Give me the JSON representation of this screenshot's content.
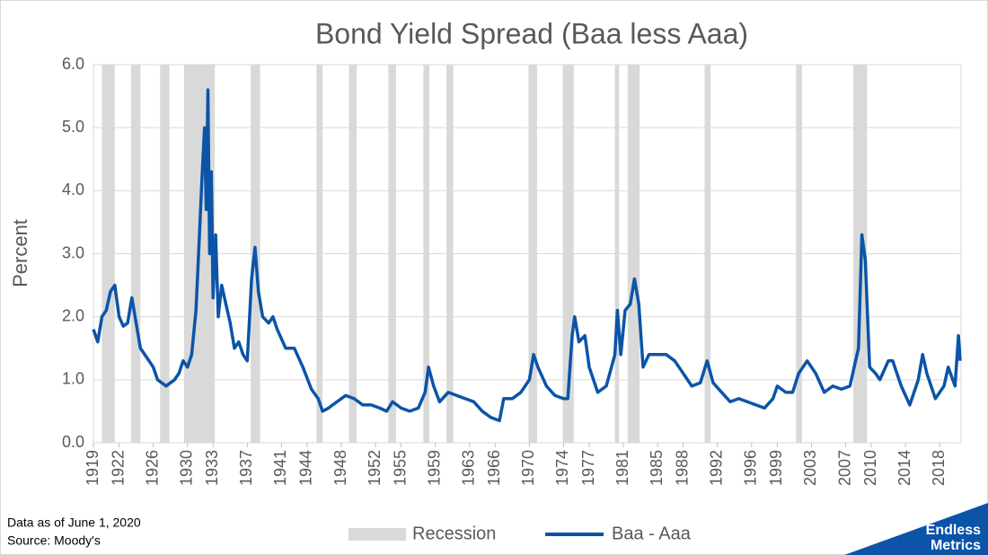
{
  "chart_data": {
    "type": "line",
    "title": "Bond Yield Spread (Baa less Aaa)",
    "y_label": "Percent",
    "xlim": [
      1919,
      2020.5
    ],
    "xticks": [
      1919,
      1922,
      1926,
      1930,
      1933,
      1937,
      1941,
      1944,
      1948,
      1952,
      1955,
      1959,
      1963,
      1966,
      1970,
      1974,
      1977,
      1981,
      1985,
      1988,
      1992,
      1996,
      1999,
      2003,
      2007,
      2010,
      2014,
      2018
    ],
    "ylim": [
      0,
      6
    ],
    "yticks": [
      {
        "value": 0,
        "label": "0.0"
      },
      {
        "value": 1,
        "label": "1.0"
      },
      {
        "value": 2,
        "label": "2.0"
      },
      {
        "value": 3,
        "label": "3.0"
      },
      {
        "value": 4,
        "label": "4.0"
      },
      {
        "value": 5,
        "label": "5.0"
      },
      {
        "value": 6,
        "label": "6.0"
      }
    ],
    "grid": true,
    "recessions": {
      "name": "Recession",
      "color": "#d9d9d9",
      "spans": [
        [
          1920.0,
          1921.5
        ],
        [
          1923.4,
          1924.5
        ],
        [
          1926.8,
          1927.9
        ],
        [
          1929.6,
          1933.2
        ],
        [
          1937.4,
          1938.5
        ],
        [
          1945.1,
          1945.8
        ],
        [
          1948.9,
          1949.8
        ],
        [
          1953.5,
          1954.4
        ],
        [
          1957.6,
          1958.3
        ],
        [
          1960.3,
          1961.1
        ],
        [
          1969.9,
          1970.9
        ],
        [
          1973.9,
          1975.2
        ],
        [
          1980.0,
          1980.5
        ],
        [
          1981.5,
          1982.9
        ],
        [
          1990.5,
          1991.2
        ],
        [
          2001.2,
          2001.9
        ],
        [
          2007.9,
          2009.5
        ]
      ]
    },
    "x": [
      1919.0,
      1919.5,
      1920.0,
      1920.5,
      1921.0,
      1921.5,
      1922.0,
      1922.5,
      1923.0,
      1923.5,
      1924.0,
      1924.5,
      1925.0,
      1925.5,
      1926.0,
      1926.5,
      1927.0,
      1927.5,
      1928.0,
      1928.5,
      1929.0,
      1929.5,
      1930.0,
      1930.5,
      1931.0,
      1931.3,
      1931.7,
      1932.0,
      1932.2,
      1932.4,
      1932.6,
      1932.8,
      1933.0,
      1933.3,
      1933.6,
      1934.0,
      1934.5,
      1935.0,
      1935.5,
      1936.0,
      1936.5,
      1937.0,
      1937.5,
      1937.9,
      1938.3,
      1938.8,
      1939.5,
      1940.0,
      1940.5,
      1941.5,
      1942.5,
      1943.5,
      1944.5,
      1945.3,
      1945.8,
      1946.5,
      1947.5,
      1948.5,
      1949.5,
      1950.5,
      1951.5,
      1952.5,
      1953.3,
      1954.0,
      1955.0,
      1956.0,
      1957.0,
      1957.8,
      1958.2,
      1958.8,
      1959.5,
      1960.5,
      1961.5,
      1962.5,
      1963.5,
      1964.5,
      1965.5,
      1966.5,
      1967.0,
      1968.0,
      1969.0,
      1970.0,
      1970.5,
      1971.0,
      1972.0,
      1973.0,
      1974.0,
      1974.5,
      1975.0,
      1975.3,
      1975.8,
      1976.5,
      1977.0,
      1978.0,
      1979.0,
      1980.0,
      1980.3,
      1980.7,
      1981.2,
      1981.8,
      1982.3,
      1982.8,
      1983.3,
      1984.0,
      1985.0,
      1986.0,
      1987.0,
      1988.0,
      1989.0,
      1990.0,
      1990.8,
      1991.5,
      1992.5,
      1993.5,
      1994.5,
      1995.5,
      1996.5,
      1997.5,
      1998.5,
      1999.0,
      2000.0,
      2000.8,
      2001.5,
      2002.5,
      2003.5,
      2004.5,
      2005.5,
      2006.5,
      2007.5,
      2008.0,
      2008.5,
      2008.9,
      2009.3,
      2009.8,
      2010.5,
      2011.0,
      2012.0,
      2012.5,
      2013.5,
      2014.5,
      2015.5,
      2016.0,
      2016.5,
      2017.5,
      2018.5,
      2019.0,
      2019.8,
      2020.2,
      2020.4
    ],
    "series": [
      {
        "name": "Baa - Aaa",
        "color": "#0b54a8",
        "values": [
          1.8,
          1.6,
          2.0,
          2.1,
          2.4,
          2.5,
          2.0,
          1.85,
          1.9,
          2.3,
          1.9,
          1.5,
          1.4,
          1.3,
          1.2,
          1.0,
          0.95,
          0.9,
          0.95,
          1.0,
          1.1,
          1.3,
          1.2,
          1.4,
          2.1,
          3.0,
          4.2,
          5.0,
          3.7,
          5.6,
          3.0,
          4.3,
          2.3,
          3.3,
          2.0,
          2.5,
          2.2,
          1.9,
          1.5,
          1.6,
          1.4,
          1.3,
          2.6,
          3.1,
          2.4,
          2.0,
          1.9,
          2.0,
          1.8,
          1.5,
          1.5,
          1.2,
          0.85,
          0.7,
          0.5,
          0.55,
          0.65,
          0.75,
          0.7,
          0.6,
          0.6,
          0.55,
          0.5,
          0.65,
          0.55,
          0.5,
          0.55,
          0.8,
          1.2,
          0.9,
          0.65,
          0.8,
          0.75,
          0.7,
          0.65,
          0.5,
          0.4,
          0.35,
          0.7,
          0.7,
          0.8,
          1.0,
          1.4,
          1.2,
          0.9,
          0.75,
          0.7,
          0.7,
          1.7,
          2.0,
          1.6,
          1.7,
          1.2,
          0.8,
          0.9,
          1.4,
          2.1,
          1.4,
          2.1,
          2.2,
          2.6,
          2.2,
          1.2,
          1.4,
          1.4,
          1.4,
          1.3,
          1.1,
          0.9,
          0.95,
          1.3,
          0.95,
          0.8,
          0.65,
          0.7,
          0.65,
          0.6,
          0.55,
          0.7,
          0.9,
          0.8,
          0.8,
          1.1,
          1.3,
          1.1,
          0.8,
          0.9,
          0.85,
          0.9,
          1.2,
          1.5,
          3.3,
          2.9,
          1.2,
          1.1,
          1.0,
          1.3,
          1.3,
          0.9,
          0.6,
          1.0,
          1.4,
          1.1,
          0.7,
          0.9,
          1.2,
          0.9,
          1.7,
          1.3
        ]
      }
    ],
    "notes": [
      "Data as of June 1, 2020",
      "Source: Moody's"
    ],
    "logo": [
      "Endless",
      "Metrics"
    ]
  }
}
